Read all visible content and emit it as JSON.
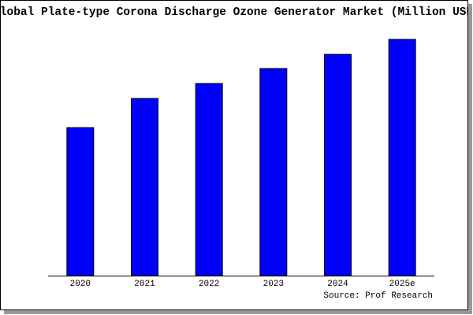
{
  "chart_data": {
    "type": "bar",
    "title": "Global Plate-type Corona Discharge Ozone Generator Market (Million USD)",
    "source": "Source: Prof Research",
    "categories": [
      "2020",
      "2021",
      "2022",
      "2023",
      "2024",
      "2025e"
    ],
    "values": [
      188,
      225,
      244,
      263,
      281,
      300
    ],
    "color": "#0000ff",
    "ylim": [
      0,
      300
    ]
  }
}
